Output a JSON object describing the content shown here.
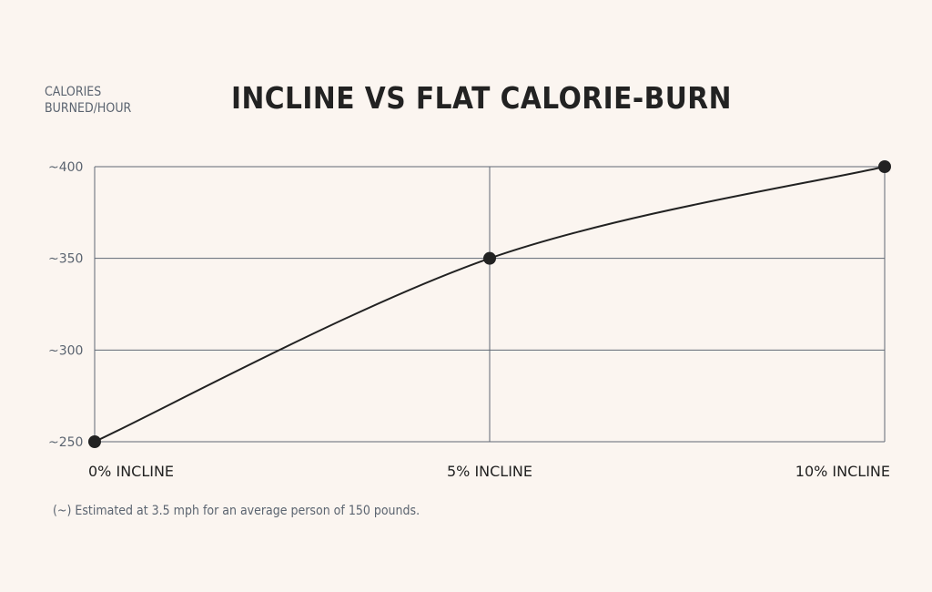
{
  "chart_data": {
    "type": "line",
    "title": "INCLINE VS FLAT CALORIE-BURN",
    "ylabel": "CALORIES BURNED/HOUR",
    "ylabel_lines": [
      "CALORIES",
      "BURNED/HOUR"
    ],
    "xlabel": "",
    "categories": [
      "0% INCLINE",
      "5% INCLINE",
      "10% INCLINE"
    ],
    "x": [
      0,
      5,
      10
    ],
    "values": [
      250,
      350,
      400
    ],
    "yticks": [
      250,
      300,
      350,
      400
    ],
    "ytick_labels": [
      "~250",
      "~300",
      "~350",
      "~400"
    ],
    "ylim": [
      250,
      400
    ],
    "xlim": [
      0,
      10
    ],
    "grid": true,
    "footnote": "(~) Estimated at 3.5 mph for an average person of 150 pounds."
  },
  "colors": {
    "background": "#fbf5f0",
    "grid": "#5f6874",
    "line": "#222222",
    "text": "#5b6470"
  }
}
